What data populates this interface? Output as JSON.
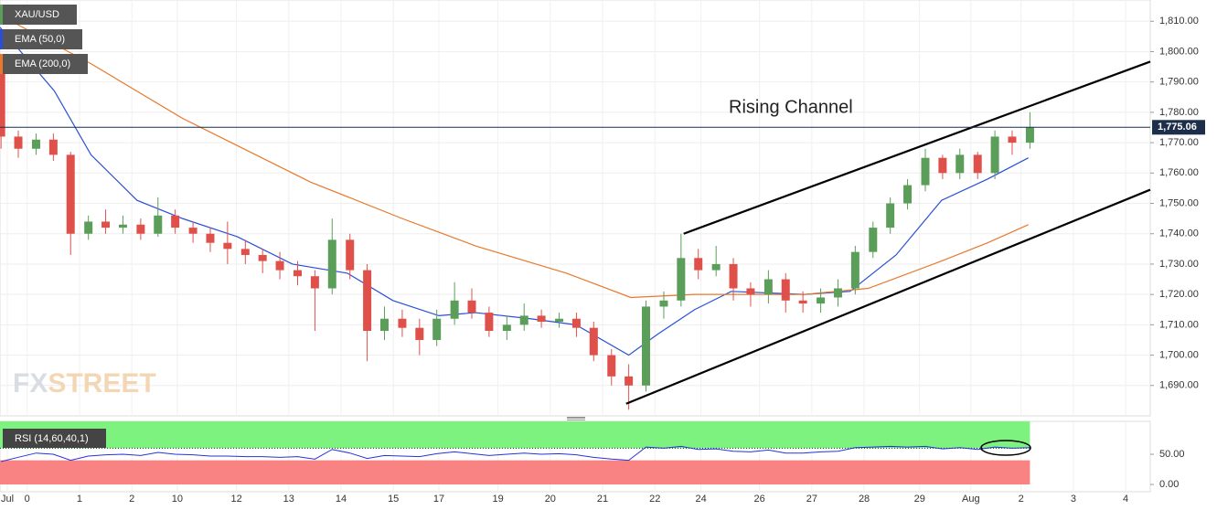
{
  "chart_data": {
    "type": "candlestick",
    "symbol": "XAU/USD",
    "up_color": "#5a9e5a",
    "down_color": "#e0504a",
    "xlim": [
      -0.52,
      21.47
    ],
    "xticks": [
      {
        "value": -0.38,
        "label": "Jul"
      },
      0,
      1,
      2,
      {
        "value": 2.87,
        "label": "10"
      },
      {
        "value": 4,
        "label": "12"
      },
      {
        "value": 5,
        "label": "13"
      },
      {
        "value": 6,
        "label": "14"
      },
      {
        "value": 7,
        "label": "15"
      },
      {
        "value": 7.87,
        "label": "17"
      },
      {
        "value": 9,
        "label": "19"
      },
      {
        "value": 10,
        "label": "20"
      },
      {
        "value": 11,
        "label": "21"
      },
      {
        "value": 12,
        "label": "22"
      },
      {
        "value": 12.88,
        "label": "24"
      },
      {
        "value": 14,
        "label": "26"
      },
      {
        "value": 15,
        "label": "27"
      },
      {
        "value": 16,
        "label": "28"
      },
      {
        "value": 17.06,
        "label": "29"
      },
      {
        "value": 18.04,
        "label": "Aug"
      },
      {
        "value": 19,
        "label": "2"
      },
      {
        "value": 20,
        "label": "3"
      },
      {
        "value": 21,
        "label": "4"
      }
    ],
    "ylim": [
      1680,
      1817
    ],
    "yticks": [
      {
        "value": 1690,
        "label": "1,690.00"
      },
      {
        "value": 1700,
        "label": "1,700.00"
      },
      {
        "value": 1710,
        "label": "1,710.00"
      },
      {
        "value": 1720,
        "label": "1,720.00"
      },
      {
        "value": 1730,
        "label": "1,730.00"
      },
      {
        "value": 1740,
        "label": "1,740.00"
      },
      {
        "value": 1750,
        "label": "1,750.00"
      },
      {
        "value": 1760,
        "label": "1,760.00"
      },
      {
        "value": 1770,
        "label": "1,770.00"
      },
      {
        "value": 1780,
        "label": "1,780.00"
      },
      {
        "value": 1790,
        "label": "1,790.00"
      },
      {
        "value": 1800,
        "label": "1,800.00"
      },
      {
        "value": 1810,
        "label": "1,810.00"
      }
    ],
    "x": [
      -0.5,
      -0.17,
      0.17,
      0.5,
      0.83,
      1.17,
      1.5,
      1.83,
      2.17,
      2.5,
      2.83,
      3.17,
      3.5,
      3.83,
      4.17,
      4.5,
      4.83,
      5.17,
      5.5,
      5.83,
      6.17,
      6.5,
      6.83,
      7.17,
      7.5,
      7.83,
      8.17,
      8.5,
      8.83,
      9.17,
      9.5,
      9.83,
      10.17,
      10.5,
      10.83,
      11.17,
      11.5,
      11.83,
      12.17,
      12.5,
      12.83,
      13.17,
      13.5,
      13.83,
      14.17,
      14.5,
      14.83,
      15.17,
      15.5,
      15.83,
      16.17,
      16.5,
      16.83,
      17.17,
      17.5,
      17.83,
      18.17,
      18.5,
      18.83,
      19.17
    ],
    "open": [
      1795,
      1772,
      1768,
      1771,
      1766,
      1740,
      1744,
      1742,
      1743,
      1740,
      1746,
      1742,
      1740,
      1737,
      1735,
      1733,
      1731,
      1728,
      1726,
      1722,
      1738,
      1728,
      1708,
      1712,
      1709,
      1705,
      1712,
      1718,
      1714,
      1708,
      1710,
      1713,
      1711,
      1712,
      1709,
      1700,
      1693,
      1690,
      1716,
      1718,
      1732,
      1728,
      1730,
      1722,
      1720,
      1725,
      1718,
      1717,
      1719,
      1722,
      1734,
      1742,
      1750,
      1756,
      1765,
      1760,
      1766,
      1760,
      1772,
      1770
    ],
    "high": [
      1797,
      1774,
      1773,
      1773,
      1767,
      1746,
      1748,
      1746,
      1745,
      1752,
      1748,
      1744,
      1742,
      1744,
      1738,
      1735,
      1734,
      1731,
      1728,
      1745,
      1740,
      1730,
      1716,
      1715,
      1712,
      1715,
      1724,
      1722,
      1716,
      1713,
      1717,
      1715,
      1714,
      1714,
      1711,
      1702,
      1697,
      1718,
      1721,
      1740,
      1735,
      1736,
      1732,
      1724,
      1728,
      1727,
      1721,
      1722,
      1725,
      1736,
      1744,
      1752,
      1758,
      1768,
      1766,
      1768,
      1767,
      1774,
      1774,
      1780
    ],
    "low": [
      1768,
      1765,
      1766,
      1764,
      1733,
      1738,
      1740,
      1740,
      1738,
      1739,
      1740,
      1737,
      1734,
      1730,
      1730,
      1727,
      1725,
      1723,
      1708,
      1720,
      1725,
      1698,
      1705,
      1706,
      1700,
      1703,
      1710,
      1712,
      1706,
      1705,
      1708,
      1709,
      1709,
      1706,
      1698,
      1690,
      1682,
      1688,
      1712,
      1716,
      1725,
      1726,
      1718,
      1716,
      1717,
      1714,
      1714,
      1714,
      1716,
      1720,
      1732,
      1740,
      1748,
      1754,
      1758,
      1758,
      1758,
      1758,
      1766,
      1768
    ],
    "close": [
      1772,
      1768,
      1771,
      1766,
      1740,
      1744,
      1742,
      1743,
      1740,
      1746,
      1742,
      1740,
      1737,
      1735,
      1733,
      1731,
      1728,
      1726,
      1722,
      1738,
      1728,
      1708,
      1712,
      1709,
      1705,
      1712,
      1718,
      1714,
      1708,
      1710,
      1713,
      1711,
      1712,
      1709,
      1700,
      1693,
      1690,
      1716,
      1718,
      1732,
      1728,
      1730,
      1722,
      1720,
      1725,
      1718,
      1717,
      1719,
      1722,
      1734,
      1742,
      1750,
      1756,
      1765,
      1760,
      1766,
      1760,
      1772,
      1770,
      1775
    ],
    "series": [
      {
        "name": "EMA (50,0)",
        "color": "#2a4fd6",
        "x": [
          -0.52,
          0.52,
          1.22,
          2.1,
          2.97,
          4.02,
          5.07,
          6.12,
          6.99,
          7.87,
          8.57,
          9.62,
          10.49,
          11.5,
          12.06,
          12.76,
          13.46,
          14.86,
          15.73,
          16.61,
          17.48,
          18.36,
          19.14
        ],
        "values": [
          1808,
          1787,
          1766,
          1751,
          1745,
          1739,
          1730,
          1727,
          1718,
          1713,
          1714,
          1712,
          1710,
          1700,
          1707,
          1715,
          1721,
          1720,
          1721,
          1733,
          1751,
          1758,
          1765
        ]
      },
      {
        "name": "EMA (200,0)",
        "color": "#e8782a",
        "x": [
          -0.52,
          1.22,
          2.97,
          5.42,
          7.17,
          8.57,
          10.31,
          11.54,
          12.76,
          14.86,
          16.08,
          17.48,
          18.36,
          19.14
        ],
        "values": [
          1812,
          1796,
          1778,
          1757,
          1745,
          1736,
          1727,
          1719,
          1720,
          1720,
          1722,
          1731,
          1737,
          1743
        ]
      }
    ],
    "channel": [
      {
        "x": [
          12.55,
          21.47
        ],
        "y": [
          1740,
          1796.7
        ]
      },
      {
        "x": [
          11.45,
          21.47
        ],
        "y": [
          1684,
          1754.5
        ]
      }
    ],
    "annotation": "Rising Channel",
    "current_price": {
      "value": 1775.06,
      "label": "1,775.06"
    },
    "watermark": [
      "FX",
      "STREET"
    ],
    "rsi": {
      "name": "RSI (14,60,40,1)",
      "color": "#2233dd",
      "upper": 60,
      "lower": 40,
      "ylim": [
        -12,
        104.5
      ],
      "yticks": [
        {
          "value": 0,
          "label": "0.00"
        },
        {
          "value": 50,
          "label": "50.00"
        }
      ],
      "values": [
        38,
        45,
        52,
        50,
        40,
        47,
        49,
        50,
        48,
        53,
        50,
        49,
        47,
        47,
        46,
        46,
        45,
        46,
        42,
        58,
        52,
        43,
        48,
        47,
        46,
        51,
        54,
        51,
        48,
        50,
        52,
        50,
        51,
        49,
        45,
        42,
        40,
        62,
        60,
        63,
        58,
        59,
        55,
        54,
        57,
        52,
        52,
        54,
        55,
        61,
        62,
        63,
        62,
        63,
        59,
        61,
        58,
        62,
        60,
        61
      ]
    }
  }
}
